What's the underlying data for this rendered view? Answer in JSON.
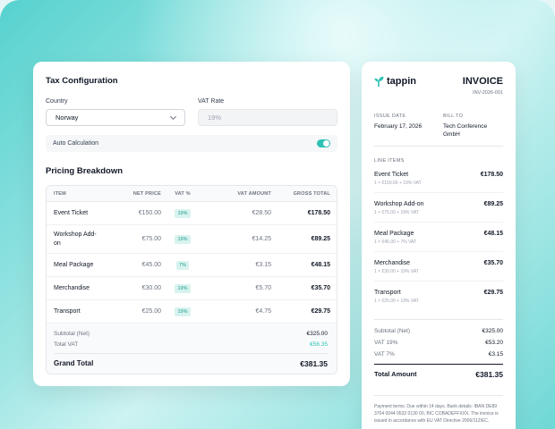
{
  "tax_config": {
    "title": "Tax Configuration",
    "country_label": "Country",
    "country_value": "Norway",
    "vat_label": "VAT Rate",
    "vat_placeholder": "19%",
    "auto_label": "Auto Calculation",
    "auto_enabled": true
  },
  "pricing": {
    "title": "Pricing Breakdown",
    "columns": [
      "ITEM",
      "NET PRICE",
      "VAT %",
      "VAT AMOUNT",
      "GROSS TOTAL"
    ],
    "rows": [
      {
        "item": "Event Ticket",
        "net": "€150.00",
        "vat": "19%",
        "vat_amount": "€28.50",
        "gross": "€178.50"
      },
      {
        "item": "Workshop Add-on",
        "net": "€75.00",
        "vat": "19%",
        "vat_amount": "€14.25",
        "gross": "€89.25"
      },
      {
        "item": "Meal Package",
        "net": "€45.00",
        "vat": "7%",
        "vat_amount": "€3.15",
        "gross": "€48.15"
      },
      {
        "item": "Merchandise",
        "net": "€30.00",
        "vat": "19%",
        "vat_amount": "€5.70",
        "gross": "€35.70"
      },
      {
        "item": "Transport",
        "net": "€25.00",
        "vat": "19%",
        "vat_amount": "€4.75",
        "gross": "€29.75"
      }
    ],
    "subtotal_label": "Subtotal (Net)",
    "subtotal_value": "€325.00",
    "total_vat_label": "Total VAT",
    "total_vat_value": "€56.35",
    "grand_label": "Grand Total",
    "grand_value": "€381.35"
  },
  "invoice": {
    "logo": "tappin",
    "title": "INVOICE",
    "number": "INV-2026-001",
    "issue_label": "ISSUE DATE",
    "issue_value": "February 17, 2026",
    "bill_label": "BILL TO",
    "bill_value": "Tech Conference GmbH",
    "line_items_label": "LINE ITEMS",
    "items": [
      {
        "name": "Event Ticket",
        "amount": "€178.50",
        "detail": "1 × €150.00 + 19% VAT"
      },
      {
        "name": "Workshop Add-on",
        "amount": "€89.25",
        "detail": "1 × €75.00 + 19% VAT"
      },
      {
        "name": "Meal Package",
        "amount": "€48.15",
        "detail": "1 × €45.00 + 7% VAT"
      },
      {
        "name": "Merchandise",
        "amount": "€35.70",
        "detail": "1 × €30.00 + 19% VAT"
      },
      {
        "name": "Transport",
        "amount": "€29.75",
        "detail": "1 × €25.00 + 19% VAT"
      }
    ],
    "subtotal_label": "Subtotal (Net)",
    "subtotal_value": "€325.00",
    "vat19_label": "VAT 19%",
    "vat19_value": "€53.20",
    "vat7_label": "VAT 7%",
    "vat7_value": "€3.15",
    "total_label": "Total Amount",
    "total_value": "€381.35",
    "terms": "Payment terms: Due within 14 days. Bank details: IBAN DE89 3704 0044 0532 0130 00, BIC COBADEFFXXX. The invoice is issued in accordance with EU VAT Directive 2006/112/EC."
  },
  "colors": {
    "accent": "#2dc1b4"
  }
}
